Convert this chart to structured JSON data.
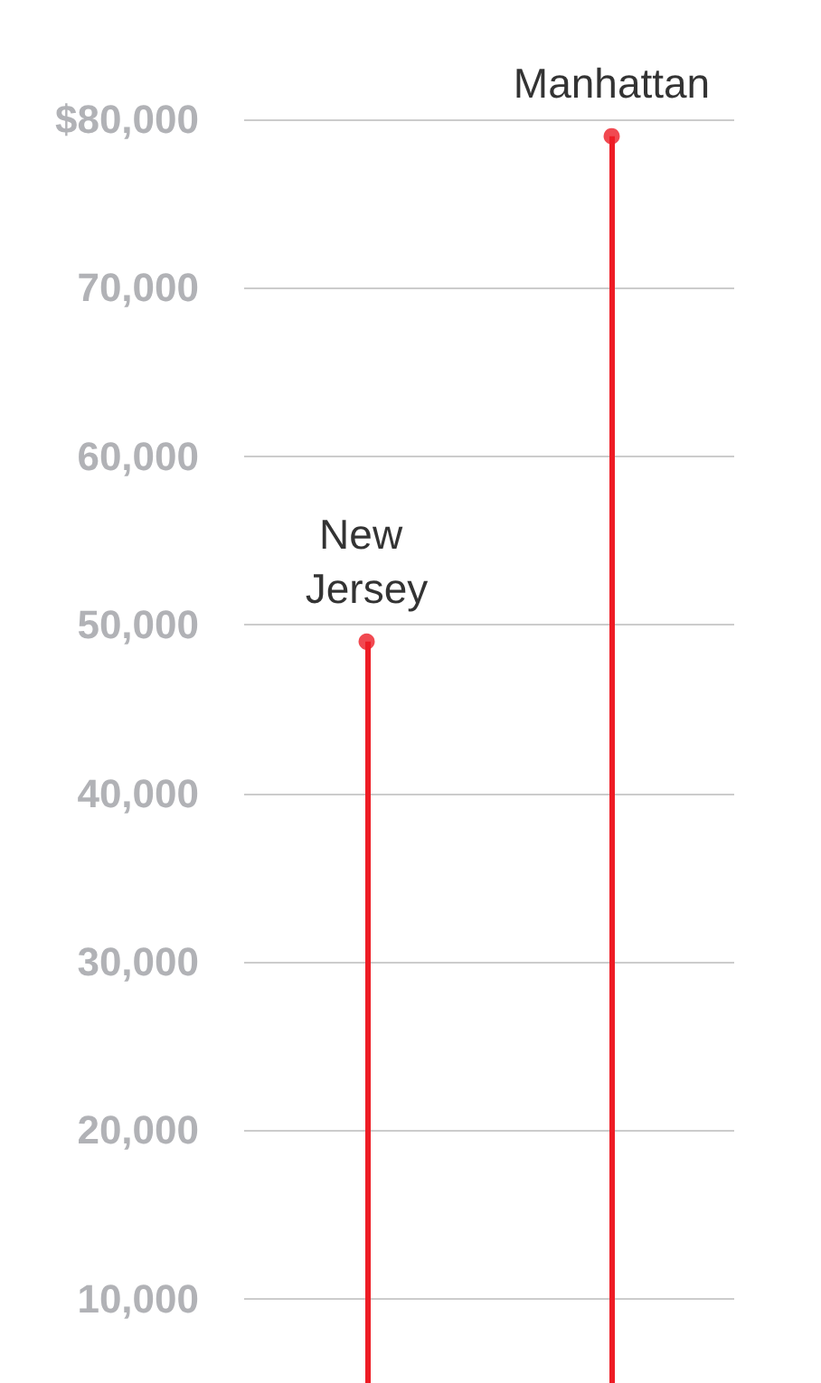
{
  "chart_data": {
    "type": "lollipop",
    "categories": [
      "New Jersey",
      "Manhattan"
    ],
    "values": [
      49000,
      79000
    ],
    "color": "#ee1c25",
    "ylim": [
      5000,
      80000
    ],
    "yticks": [
      {
        "value": 10000,
        "label": "10,000"
      },
      {
        "value": 20000,
        "label": "20,000"
      },
      {
        "value": 30000,
        "label": "30,000"
      },
      {
        "value": 40000,
        "label": "40,000"
      },
      {
        "value": 50000,
        "label": "50,000"
      },
      {
        "value": 60000,
        "label": "60,000"
      },
      {
        "value": 70000,
        "label": "70,000"
      },
      {
        "value": 80000,
        "label": "$80,000"
      }
    ],
    "grid": "y",
    "tick_labels": "y",
    "marker": "circle"
  }
}
